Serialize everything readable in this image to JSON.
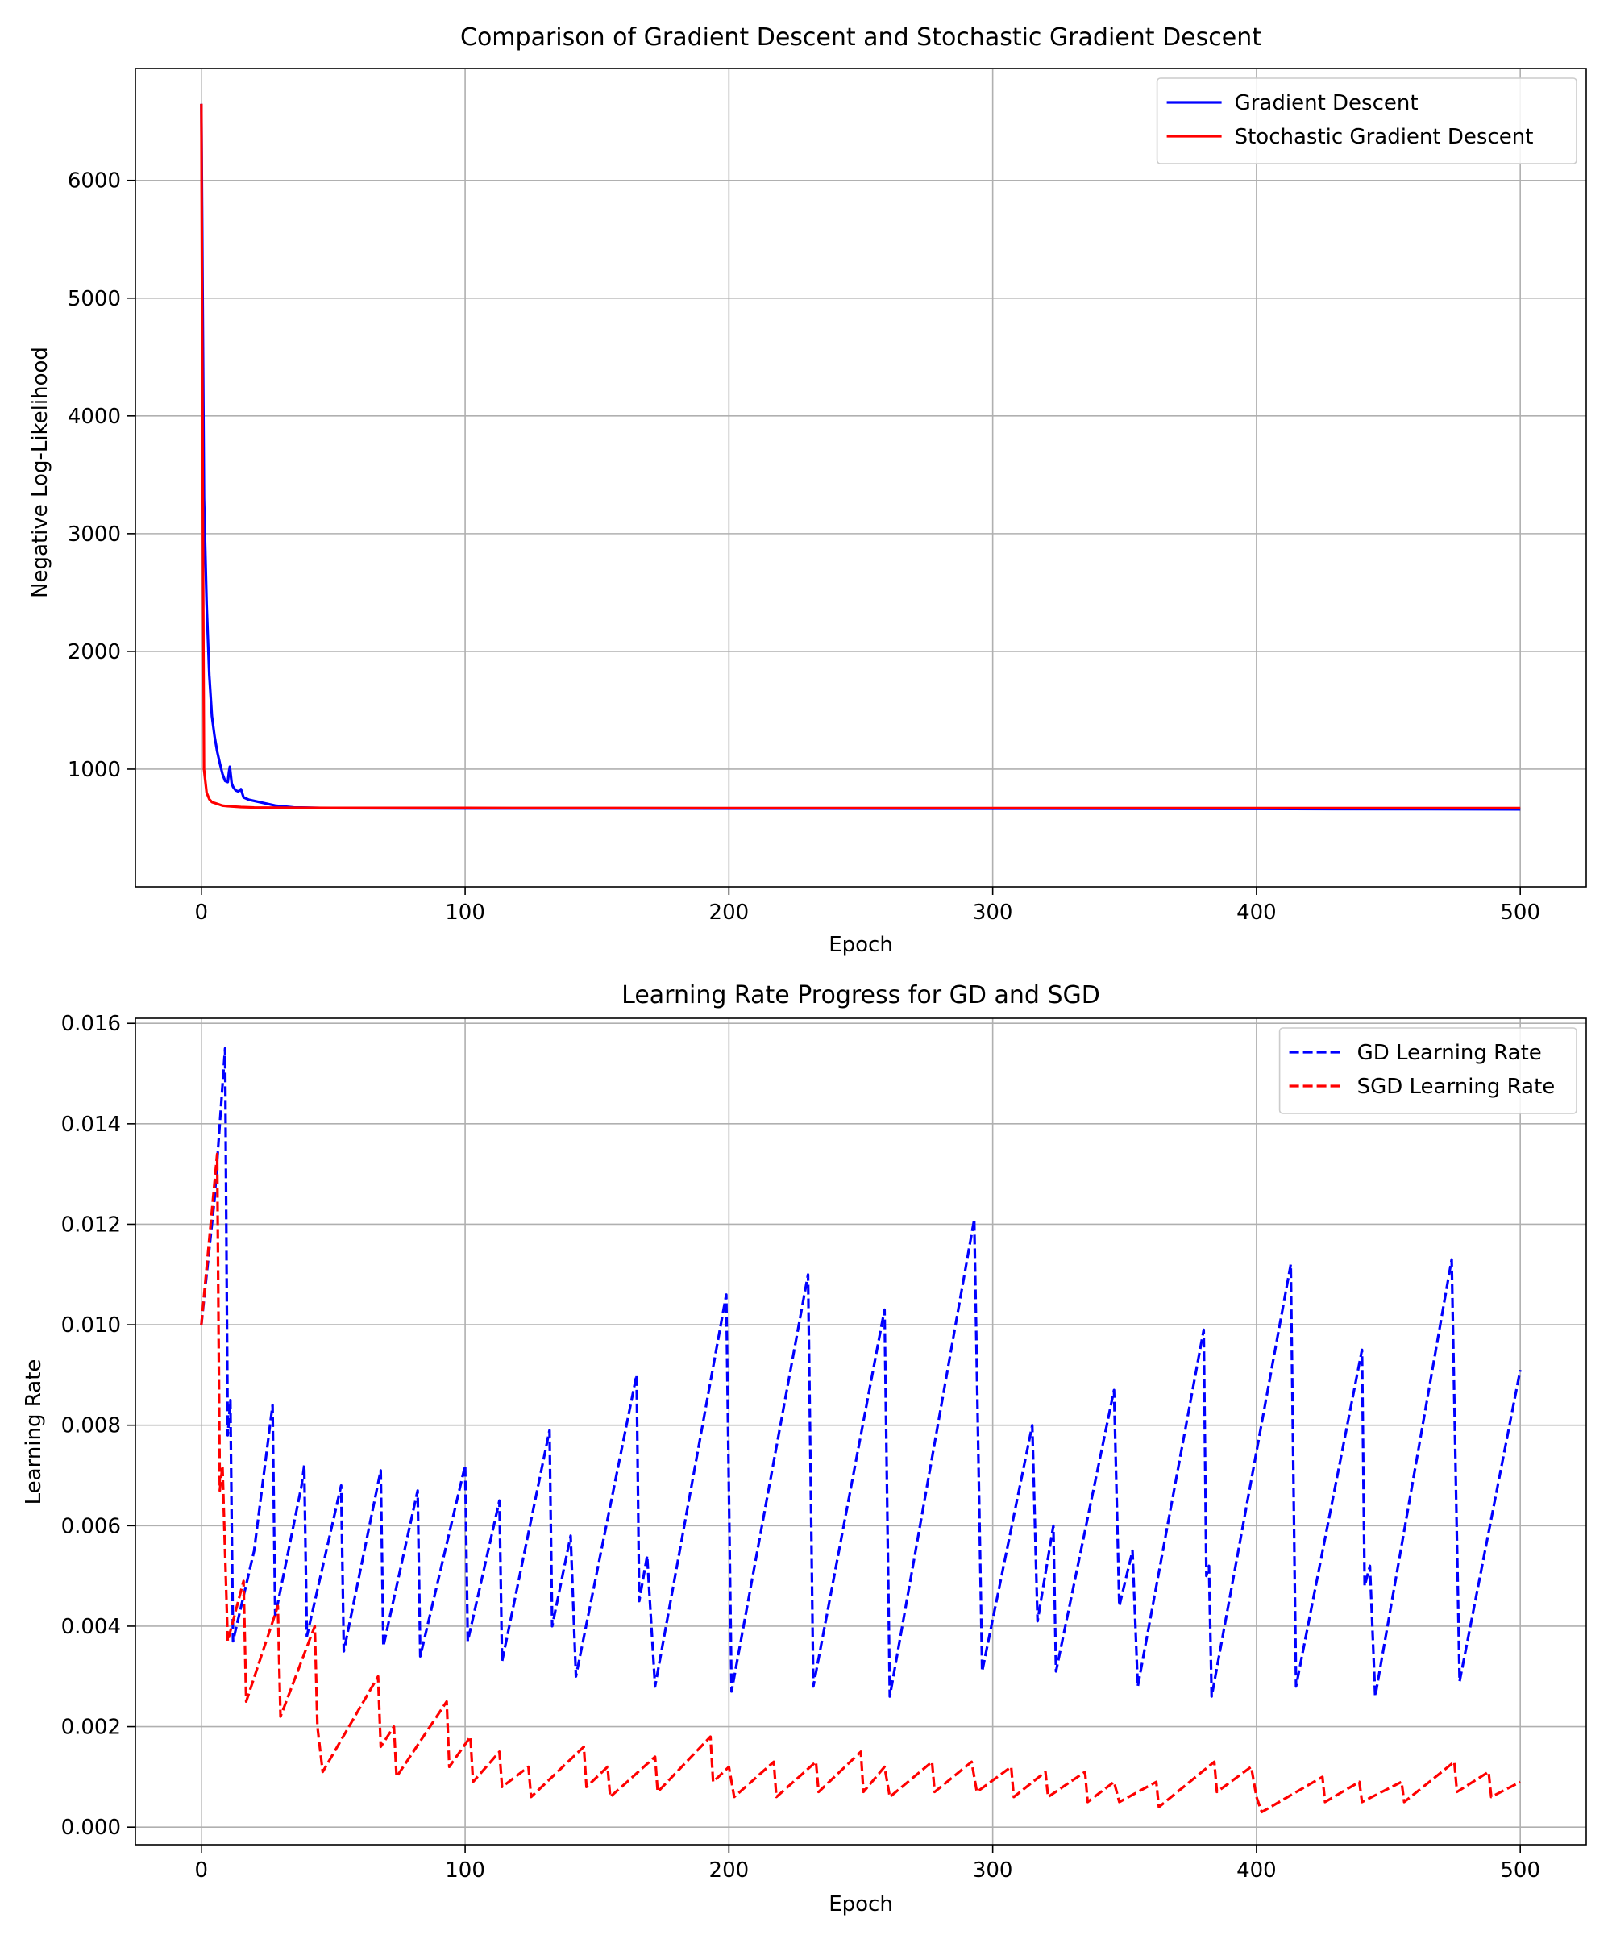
{
  "figure": {
    "colors": {
      "gd": "#0000ff",
      "sgd": "#ff0000",
      "grid": "#b0b0b0",
      "axes": "#000000"
    }
  },
  "chart_data": [
    {
      "type": "line",
      "title": "Comparison of Gradient Descent and Stochastic Gradient Descent",
      "xlabel": "Epoch",
      "ylabel": "Negative Log-Likelihood",
      "xlim": [
        -25,
        525
      ],
      "ylim": [
        0,
        6950
      ],
      "xticks": [
        0,
        100,
        200,
        300,
        400,
        500
      ],
      "yticks": [
        1000,
        2000,
        3000,
        4000,
        5000,
        6000
      ],
      "grid": true,
      "legend_position": "upper-right",
      "series": [
        {
          "name": "Gradient Descent",
          "color": "#0000ff",
          "style": "solid",
          "points": [
            [
              0,
              6650
            ],
            [
              1,
              3300
            ],
            [
              2,
              2400
            ],
            [
              3,
              1800
            ],
            [
              4,
              1450
            ],
            [
              5,
              1280
            ],
            [
              6,
              1150
            ],
            [
              7,
              1050
            ],
            [
              8,
              960
            ],
            [
              9,
              900
            ],
            [
              10,
              890
            ],
            [
              10.5,
              980
            ],
            [
              10.8,
              1020
            ],
            [
              11.5,
              880
            ],
            [
              12,
              850
            ],
            [
              13,
              820
            ],
            [
              14,
              810
            ],
            [
              15,
              830
            ],
            [
              16,
              760
            ],
            [
              18,
              740
            ],
            [
              22,
              720
            ],
            [
              28,
              690
            ],
            [
              35,
              675
            ],
            [
              50,
              668
            ],
            [
              100,
              666
            ],
            [
              200,
              665
            ],
            [
              300,
              664
            ],
            [
              400,
              662
            ],
            [
              500,
              658
            ]
          ]
        },
        {
          "name": "Stochastic Gradient Descent",
          "color": "#ff0000",
          "style": "solid",
          "points": [
            [
              0,
              6650
            ],
            [
              0.5,
              3500
            ],
            [
              1,
              1000
            ],
            [
              2,
              800
            ],
            [
              3,
              745
            ],
            [
              4,
              720
            ],
            [
              6,
              705
            ],
            [
              8,
              690
            ],
            [
              10,
              685
            ],
            [
              15,
              678
            ],
            [
              20,
              674
            ],
            [
              30,
              672
            ],
            [
              50,
              670
            ],
            [
              100,
              670
            ],
            [
              200,
              669
            ],
            [
              300,
              669
            ],
            [
              400,
              669
            ],
            [
              500,
              669
            ]
          ]
        }
      ]
    },
    {
      "type": "line",
      "title": "Learning Rate Progress for GD and SGD",
      "xlabel": "Epoch",
      "ylabel": "Learning Rate",
      "xlim": [
        -25,
        525
      ],
      "ylim": [
        -0.00035,
        0.0161
      ],
      "xticks": [
        0,
        100,
        200,
        300,
        400,
        500
      ],
      "yticks": [
        0.0,
        0.002,
        0.004,
        0.006,
        0.008,
        0.01,
        0.012,
        0.014,
        0.016
      ],
      "ytick_labels": [
        "0.000",
        "0.002",
        "0.004",
        "0.006",
        "0.008",
        "0.010",
        "0.012",
        "0.014",
        "0.016"
      ],
      "grid": true,
      "legend_position": "upper-right",
      "series": [
        {
          "name": "GD Learning Rate",
          "color": "#0000ff",
          "style": "dashed",
          "points": [
            [
              0,
              0.01
            ],
            [
              5,
              0.0125
            ],
            [
              9,
              0.0155
            ],
            [
              10,
              0.0078
            ],
            [
              11,
              0.0085
            ],
            [
              12,
              0.0037
            ],
            [
              20,
              0.0055
            ],
            [
              27,
              0.0084
            ],
            [
              28,
              0.0042
            ],
            [
              38,
              0.0068
            ],
            [
              39,
              0.0072
            ],
            [
              40,
              0.0038
            ],
            [
              53,
              0.0068
            ],
            [
              54,
              0.0035
            ],
            [
              68,
              0.0071
            ],
            [
              69,
              0.0036
            ],
            [
              82,
              0.0067
            ],
            [
              83,
              0.0034
            ],
            [
              100,
              0.0072
            ],
            [
              101,
              0.0037
            ],
            [
              113,
              0.0065
            ],
            [
              114,
              0.0033
            ],
            [
              132,
              0.0079
            ],
            [
              133,
              0.004
            ],
            [
              140,
              0.0058
            ],
            [
              142,
              0.003
            ],
            [
              165,
              0.009
            ],
            [
              166,
              0.0045
            ],
            [
              169,
              0.0054
            ],
            [
              172,
              0.0028
            ],
            [
              199,
              0.0106
            ],
            [
              201,
              0.0027
            ],
            [
              230,
              0.011
            ],
            [
              232,
              0.0028
            ],
            [
              259,
              0.0103
            ],
            [
              261,
              0.0026
            ],
            [
              293,
              0.0121
            ],
            [
              296,
              0.0031
            ],
            [
              315,
              0.008
            ],
            [
              317,
              0.0041
            ],
            [
              323,
              0.006
            ],
            [
              324,
              0.0031
            ],
            [
              346,
              0.0087
            ],
            [
              348,
              0.0044
            ],
            [
              353,
              0.0055
            ],
            [
              355,
              0.0028
            ],
            [
              380,
              0.0099
            ],
            [
              381,
              0.005
            ],
            [
              382,
              0.0052
            ],
            [
              383,
              0.0026
            ],
            [
              413,
              0.0112
            ],
            [
              415,
              0.0028
            ],
            [
              440,
              0.0095
            ],
            [
              441,
              0.0048
            ],
            [
              443,
              0.0052
            ],
            [
              445,
              0.0026
            ],
            [
              474,
              0.0113
            ],
            [
              477,
              0.0029
            ],
            [
              500,
              0.0091
            ]
          ]
        },
        {
          "name": "SGD Learning Rate",
          "color": "#ff0000",
          "style": "dashed",
          "points": [
            [
              0,
              0.01
            ],
            [
              6,
              0.0134
            ],
            [
              7,
              0.0067
            ],
            [
              8,
              0.0072
            ],
            [
              10,
              0.0037
            ],
            [
              16,
              0.0049
            ],
            [
              17,
              0.0025
            ],
            [
              29,
              0.0044
            ],
            [
              30,
              0.0022
            ],
            [
              43,
              0.004
            ],
            [
              44,
              0.002
            ],
            [
              46,
              0.0011
            ],
            [
              67,
              0.003
            ],
            [
              68,
              0.0016
            ],
            [
              73,
              0.002
            ],
            [
              74,
              0.001
            ],
            [
              93,
              0.0025
            ],
            [
              94,
              0.0012
            ],
            [
              102,
              0.0018
            ],
            [
              103,
              0.0009
            ],
            [
              113,
              0.0015
            ],
            [
              114,
              0.0008
            ],
            [
              124,
              0.0012
            ],
            [
              125,
              0.0006
            ],
            [
              145,
              0.0016
            ],
            [
              146,
              0.0008
            ],
            [
              154,
              0.0012
            ],
            [
              155,
              0.0006
            ],
            [
              172,
              0.0014
            ],
            [
              173,
              0.0007
            ],
            [
              193,
              0.0018
            ],
            [
              194,
              0.0009
            ],
            [
              200,
              0.0012
            ],
            [
              202,
              0.0006
            ],
            [
              217,
              0.0013
            ],
            [
              218,
              0.0006
            ],
            [
              233,
              0.0013
            ],
            [
              234,
              0.0007
            ],
            [
              250,
              0.0015
            ],
            [
              251,
              0.0007
            ],
            [
              259,
              0.0012
            ],
            [
              261,
              0.0006
            ],
            [
              277,
              0.0013
            ],
            [
              278,
              0.0007
            ],
            [
              292,
              0.0013
            ],
            [
              294,
              0.0007
            ],
            [
              307,
              0.0012
            ],
            [
              308,
              0.0006
            ],
            [
              320,
              0.0011
            ],
            [
              321,
              0.0006
            ],
            [
              335,
              0.0011
            ],
            [
              336,
              0.0005
            ],
            [
              346,
              0.0009
            ],
            [
              348,
              0.0005
            ],
            [
              362,
              0.0009
            ],
            [
              363,
              0.0004
            ],
            [
              384,
              0.0013
            ],
            [
              385,
              0.0007
            ],
            [
              398,
              0.0012
            ],
            [
              400,
              0.0006
            ],
            [
              402,
              0.0003
            ],
            [
              425,
              0.001
            ],
            [
              426,
              0.0005
            ],
            [
              439,
              0.0009
            ],
            [
              440,
              0.0005
            ],
            [
              455,
              0.0009
            ],
            [
              456,
              0.0005
            ],
            [
              475,
              0.0013
            ],
            [
              476,
              0.0007
            ],
            [
              488,
              0.0011
            ],
            [
              489,
              0.0006
            ],
            [
              500,
              0.0009
            ]
          ]
        }
      ]
    }
  ]
}
